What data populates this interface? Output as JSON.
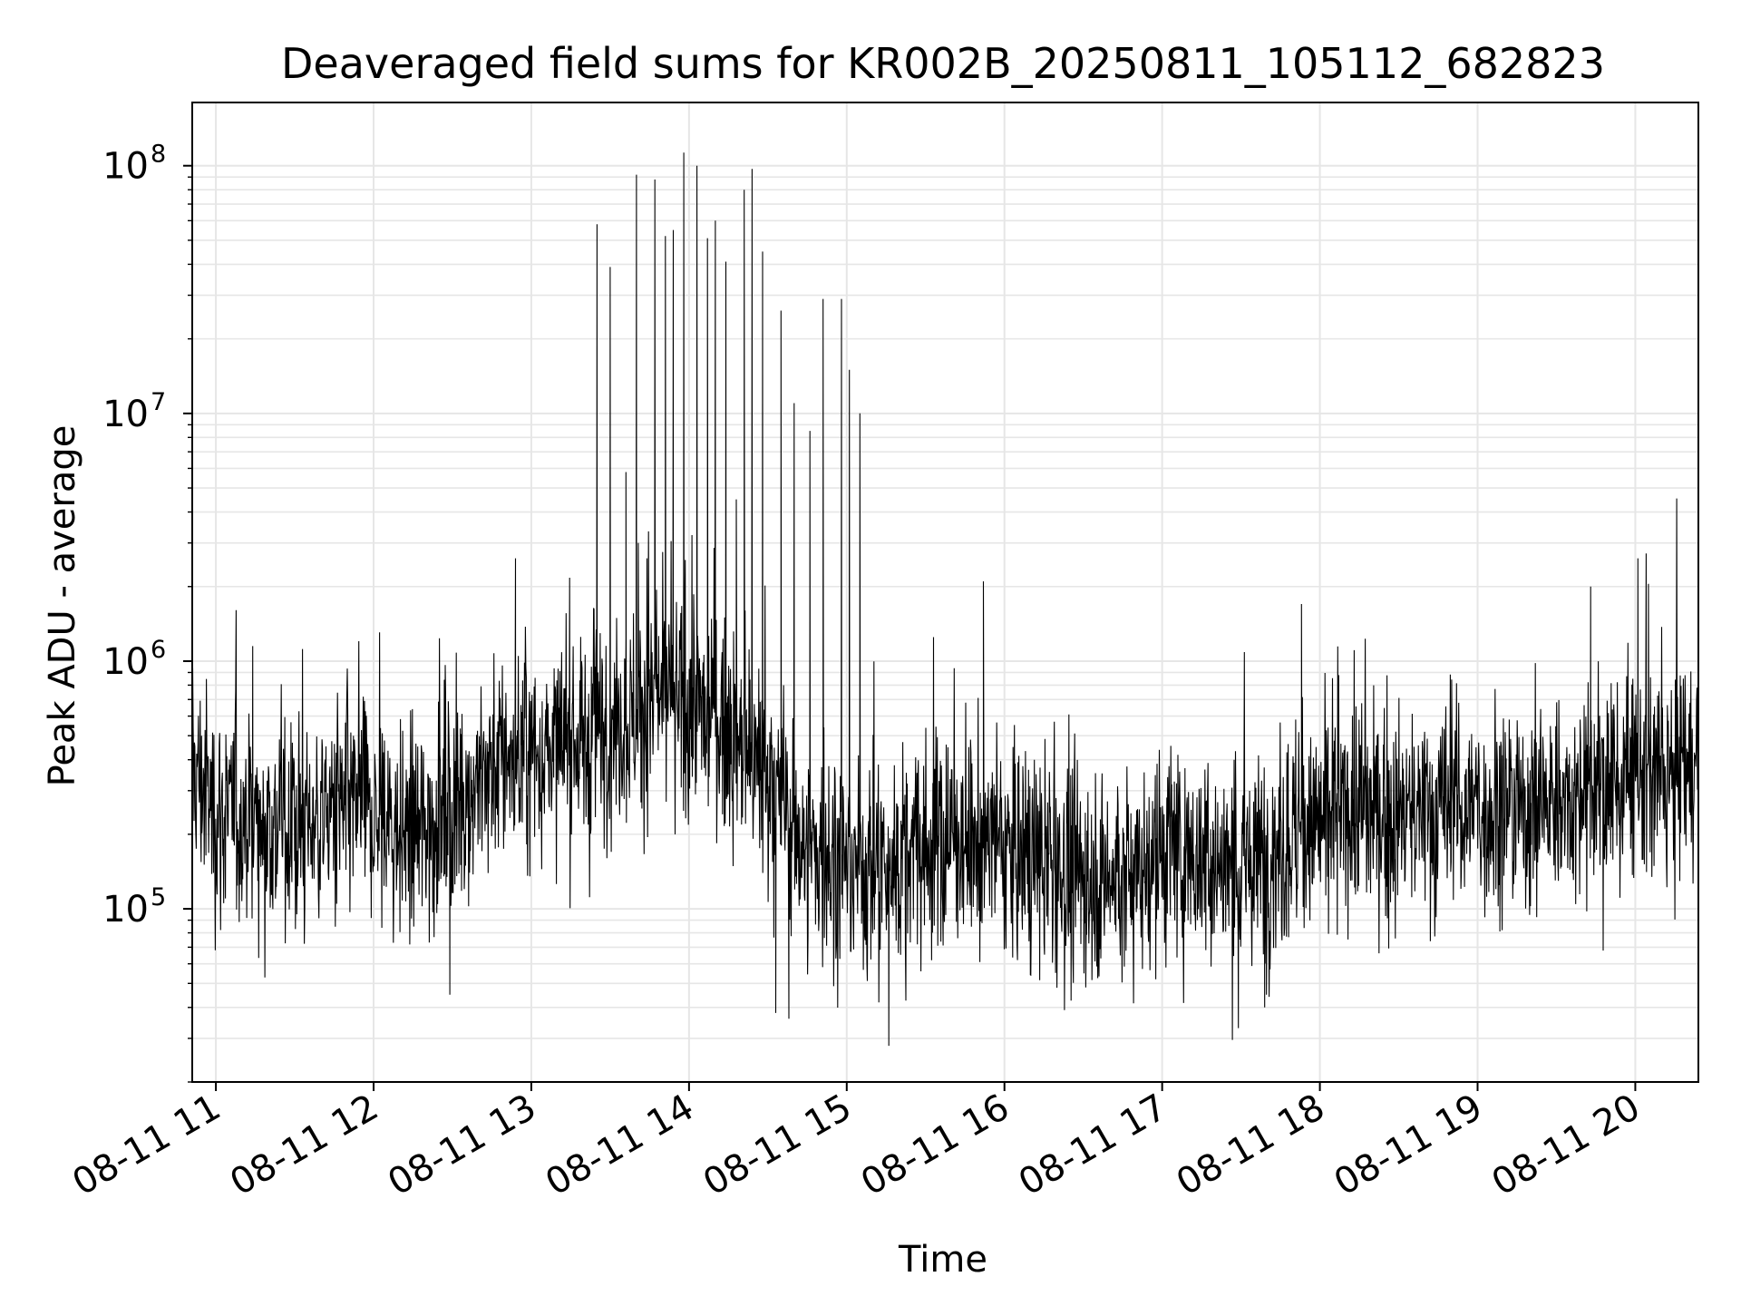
{
  "chart_data": {
    "type": "line",
    "title": "Deaveraged field sums for KR002B_20250811_105112_682823",
    "xlabel": "Time",
    "ylabel": "Peak ADU - average",
    "y_scale": "log",
    "x_range": [
      "2025-08-11 10:51",
      "2025-08-11 20:24"
    ],
    "ylim": [
      20000,
      180000000
    ],
    "grid": true,
    "line_color": "#000000",
    "grid_color": "#e6e6e6",
    "x_ticks": [
      {
        "value": "2025-08-11 11:00",
        "label": "08-11 11"
      },
      {
        "value": "2025-08-11 12:00",
        "label": "08-11 12"
      },
      {
        "value": "2025-08-11 13:00",
        "label": "08-11 13"
      },
      {
        "value": "2025-08-11 14:00",
        "label": "08-11 14"
      },
      {
        "value": "2025-08-11 15:00",
        "label": "08-11 15"
      },
      {
        "value": "2025-08-11 16:00",
        "label": "08-11 16"
      },
      {
        "value": "2025-08-11 17:00",
        "label": "08-11 17"
      },
      {
        "value": "2025-08-11 18:00",
        "label": "08-11 18"
      },
      {
        "value": "2025-08-11 19:00",
        "label": "08-11 19"
      },
      {
        "value": "2025-08-11 20:00",
        "label": "08-11 20"
      }
    ],
    "y_ticks": [
      {
        "value": 100000,
        "base": "10",
        "exp": "5"
      },
      {
        "value": 1000000,
        "base": "10",
        "exp": "6"
      },
      {
        "value": 10000000,
        "base": "10",
        "exp": "7"
      },
      {
        "value": 100000000,
        "base": "10",
        "exp": "8"
      }
    ],
    "series": [
      {
        "x": [
          "2025-08-11 10:51",
          "2025-08-11 11:00",
          "2025-08-11 11:15",
          "2025-08-11 11:30",
          "2025-08-11 11:45",
          "2025-08-11 12:00",
          "2025-08-11 12:15",
          "2025-08-11 12:30",
          "2025-08-11 12:45",
          "2025-08-11 13:00",
          "2025-08-11 13:15",
          "2025-08-11 13:30",
          "2025-08-11 13:45",
          "2025-08-11 14:00",
          "2025-08-11 14:15",
          "2025-08-11 14:30",
          "2025-08-11 14:45",
          "2025-08-11 15:00",
          "2025-08-11 15:15",
          "2025-08-11 15:30",
          "2025-08-11 15:45",
          "2025-08-11 16:00",
          "2025-08-11 16:15",
          "2025-08-11 16:30",
          "2025-08-11 16:45",
          "2025-08-11 17:00",
          "2025-08-11 17:15",
          "2025-08-11 17:30",
          "2025-08-11 17:45",
          "2025-08-11 18:00",
          "2025-08-11 18:15",
          "2025-08-11 18:30",
          "2025-08-11 18:45",
          "2025-08-11 19:00",
          "2025-08-11 19:15",
          "2025-08-11 19:30",
          "2025-08-11 19:45",
          "2025-08-11 20:00",
          "2025-08-11 20:15",
          "2025-08-11 20:24"
        ],
        "values": [
          380000,
          240000,
          230000,
          210000,
          250000,
          230000,
          190000,
          260000,
          370000,
          420000,
          430000,
          560000,
          650000,
          680000,
          520000,
          320000,
          170000,
          150000,
          140000,
          180000,
          190000,
          180000,
          150000,
          140000,
          130000,
          170000,
          160000,
          140000,
          180000,
          220000,
          250000,
          230000,
          240000,
          260000,
          250000,
          270000,
          300000,
          320000,
          340000,
          360000
        ],
        "spikes": [
          {
            "x": "2025-08-11 11:14",
            "y": 1150000
          },
          {
            "x": "2025-08-11 12:54",
            "y": 2600000
          },
          {
            "x": "2025-08-11 13:25",
            "y": 58000000
          },
          {
            "x": "2025-08-11 13:30",
            "y": 39000000
          },
          {
            "x": "2025-08-11 13:36",
            "y": 5800000
          },
          {
            "x": "2025-08-11 13:40",
            "y": 92000000
          },
          {
            "x": "2025-08-11 13:44",
            "y": 2600000
          },
          {
            "x": "2025-08-11 13:47",
            "y": 88000000
          },
          {
            "x": "2025-08-11 13:51",
            "y": 52000000
          },
          {
            "x": "2025-08-11 13:54",
            "y": 55000000
          },
          {
            "x": "2025-08-11 13:58",
            "y": 113000000
          },
          {
            "x": "2025-08-11 14:03",
            "y": 100000000
          },
          {
            "x": "2025-08-11 14:07",
            "y": 51000000
          },
          {
            "x": "2025-08-11 14:10",
            "y": 60000000
          },
          {
            "x": "2025-08-11 14:14",
            "y": 41000000
          },
          {
            "x": "2025-08-11 14:18",
            "y": 4500000
          },
          {
            "x": "2025-08-11 14:21",
            "y": 80000000
          },
          {
            "x": "2025-08-11 14:24",
            "y": 97000000
          },
          {
            "x": "2025-08-11 14:28",
            "y": 45000000
          },
          {
            "x": "2025-08-11 14:35",
            "y": 26000000
          },
          {
            "x": "2025-08-11 14:40",
            "y": 11000000
          },
          {
            "x": "2025-08-11 14:46",
            "y": 8500000
          },
          {
            "x": "2025-08-11 14:51",
            "y": 29000000
          },
          {
            "x": "2025-08-11 14:58",
            "y": 29000000
          },
          {
            "x": "2025-08-11 15:01",
            "y": 15000000
          },
          {
            "x": "2025-08-11 15:05",
            "y": 10000000
          },
          {
            "x": "2025-08-11 15:33",
            "y": 1250000
          },
          {
            "x": "2025-08-11 15:52",
            "y": 2100000
          },
          {
            "x": "2025-08-11 17:53",
            "y": 1700000
          },
          {
            "x": "2025-08-11 19:43",
            "y": 2000000
          },
          {
            "x": "2025-08-11 20:01",
            "y": 2600000
          },
          {
            "x": "2025-08-11 20:05",
            "y": 2050000
          }
        ],
        "dips": [
          {
            "x": "2025-08-11 12:29",
            "y": 45000
          },
          {
            "x": "2025-08-11 14:33",
            "y": 38000
          },
          {
            "x": "2025-08-11 14:38",
            "y": 36000
          },
          {
            "x": "2025-08-11 15:16",
            "y": 28000
          },
          {
            "x": "2025-08-11 17:29",
            "y": 33000
          },
          {
            "x": "2025-08-11 17:39",
            "y": 40000
          }
        ]
      }
    ]
  }
}
